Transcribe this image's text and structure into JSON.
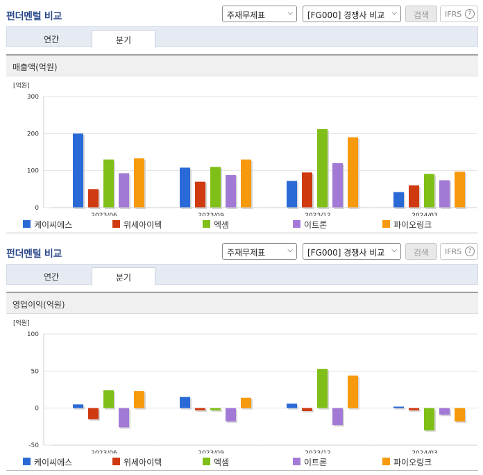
{
  "sections": [
    {
      "title": "펀더멘털 비교",
      "select1": "주재무제표",
      "select2": "[FG000] 경쟁사 비교",
      "search_label": "검색",
      "ifrs_label": "IFRS",
      "help_glyph": "?",
      "tabs": {
        "annual": "연간",
        "quarter": "분기",
        "active": "분기"
      },
      "panel_title": "매출액(억원)"
    },
    {
      "title": "펀더멘털 비교",
      "select1": "주재무제표",
      "select2": "[FG000] 경쟁사 비교",
      "search_label": "검색",
      "ifrs_label": "IFRS",
      "help_glyph": "?",
      "tabs": {
        "annual": "연간",
        "quarter": "분기",
        "active": "분기"
      },
      "panel_title": "영업이익(억원)"
    }
  ],
  "legend": [
    "케이씨에스",
    "위세아이텍",
    "엑셈",
    "이트론",
    "파이오링크"
  ],
  "colors": [
    "#2a6ad6",
    "#cf3a10",
    "#7fbf18",
    "#a27ad6",
    "#f7990d"
  ],
  "icons": {
    "dropdown": "chevron-down-icon",
    "help": "question-circle-icon"
  },
  "chart_data": [
    {
      "type": "bar",
      "title": "매출액(억원)",
      "unit_label": "[억원]",
      "categories": [
        "2023/06",
        "2023/09",
        "2023/12",
        "2024/03"
      ],
      "ylim": [
        0,
        300
      ],
      "yticks": [
        0,
        100,
        200,
        300
      ],
      "grid": true,
      "legend_position": "bottom",
      "series": [
        {
          "name": "케이씨에스",
          "values": [
            200,
            108,
            72,
            42
          ]
        },
        {
          "name": "위세아이텍",
          "values": [
            50,
            70,
            95,
            60
          ]
        },
        {
          "name": "엑셈",
          "values": [
            130,
            110,
            212,
            91
          ]
        },
        {
          "name": "이트론",
          "values": [
            93,
            88,
            120,
            74
          ]
        },
        {
          "name": "파이오링크",
          "values": [
            133,
            130,
            190,
            97
          ]
        }
      ]
    },
    {
      "type": "bar",
      "title": "영업이익(억원)",
      "unit_label": "[억원]",
      "categories": [
        "2023/06",
        "2023/09",
        "2023/12",
        "2024/03"
      ],
      "ylim": [
        -50,
        100
      ],
      "yticks": [
        -50,
        0,
        50,
        100
      ],
      "grid": true,
      "legend_position": "bottom",
      "series": [
        {
          "name": "케이씨에스",
          "values": [
            5,
            15,
            6,
            2
          ]
        },
        {
          "name": "위세아이텍",
          "values": [
            -15,
            -3,
            -4,
            -3
          ]
        },
        {
          "name": "엑셈",
          "values": [
            24,
            -3,
            53,
            -30
          ]
        },
        {
          "name": "이트론",
          "values": [
            -26,
            -18,
            -23,
            -9
          ]
        },
        {
          "name": "파이오링크",
          "values": [
            23,
            14,
            44,
            -18
          ]
        }
      ]
    }
  ]
}
